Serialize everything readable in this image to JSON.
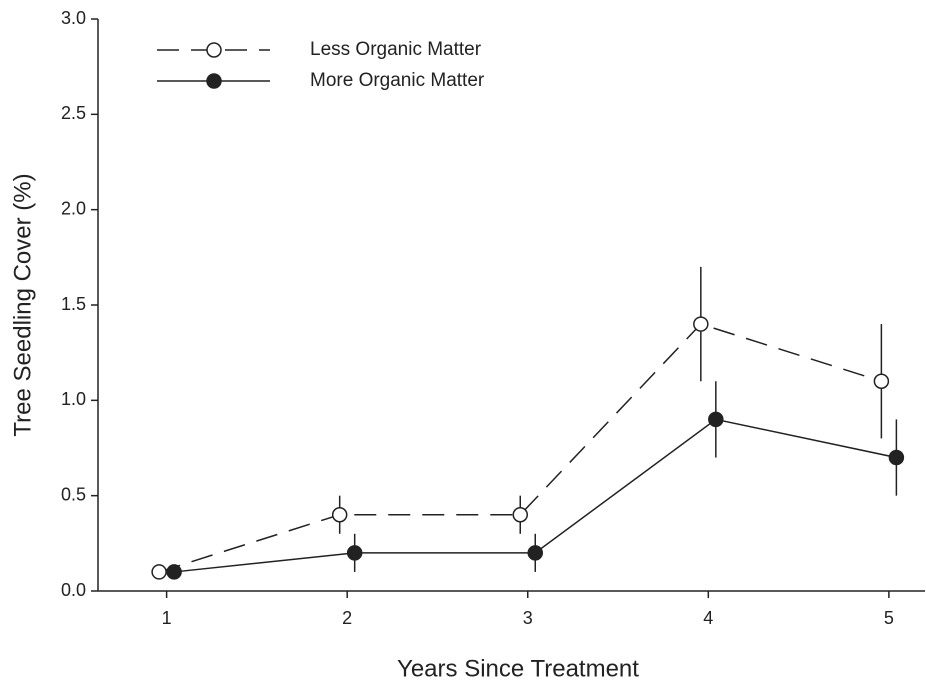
{
  "chart_data": {
    "type": "line",
    "x_label": "Years Since Treatment",
    "y_label": "Tree Seedling Cover (%)",
    "x": [
      1,
      2,
      3,
      4,
      5
    ],
    "xlim": [
      0.62,
      5.2
    ],
    "xticks": [
      1,
      2,
      3,
      4,
      5
    ],
    "ylim": [
      0,
      3
    ],
    "yticks": [
      {
        "value": 0,
        "label": "0.0"
      },
      {
        "value": 0.5,
        "label": "0.5"
      },
      {
        "value": 1,
        "label": "1.0"
      },
      {
        "value": 1.5,
        "label": "1.5"
      },
      {
        "value": 2,
        "label": "2.0"
      },
      {
        "value": 2.5,
        "label": "2.5"
      },
      {
        "value": 3,
        "label": "3.0"
      }
    ],
    "legend": "upper left",
    "series": [
      {
        "name": "Less Organic Matter",
        "color": "#222222",
        "line_style": "dashed",
        "marker": "open",
        "values": [
          0.1,
          0.4,
          0.4,
          1.4,
          1.1
        ],
        "errors": [
          0,
          0.1,
          0.1,
          0.3,
          0.3
        ]
      },
      {
        "name": "More Organic Matter",
        "color": "#222222",
        "line_style": "solid",
        "marker": "filled",
        "values": [
          0.1,
          0.2,
          0.2,
          0.9,
          0.7
        ],
        "errors": [
          0,
          0.1,
          0.1,
          0.2,
          0.2
        ]
      }
    ]
  }
}
